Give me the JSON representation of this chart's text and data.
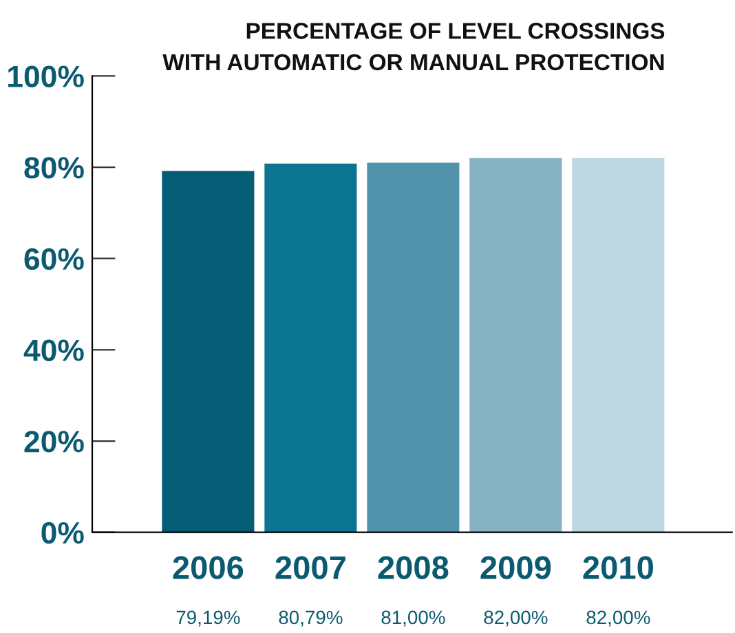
{
  "chart_data": {
    "type": "bar",
    "title": "PERCENTAGE OF LEVEL CROSSINGS\nWITH AUTOMATIC OR MANUAL PROTECTION",
    "categories": [
      "2006",
      "2007",
      "2008",
      "2009",
      "2010"
    ],
    "values": [
      79.19,
      80.79,
      81.0,
      82.0,
      82.0
    ],
    "value_labels": [
      "79,19%",
      "80,79%",
      "81,00%",
      "82,00%",
      "82,00%"
    ],
    "colors": [
      "#045d75",
      "#0b7591",
      "#5193ab",
      "#87b2c3",
      "#bdd6e0"
    ],
    "ylim": [
      0,
      100
    ],
    "yticks": [
      {
        "value": 0,
        "label": "0%"
      },
      {
        "value": 20,
        "label": "20%"
      },
      {
        "value": 40,
        "label": "40%"
      },
      {
        "value": 60,
        "label": "60%"
      },
      {
        "value": 80,
        "label": "80%"
      },
      {
        "value": 100,
        "label": "100%"
      }
    ],
    "grid": false,
    "legend": false
  }
}
